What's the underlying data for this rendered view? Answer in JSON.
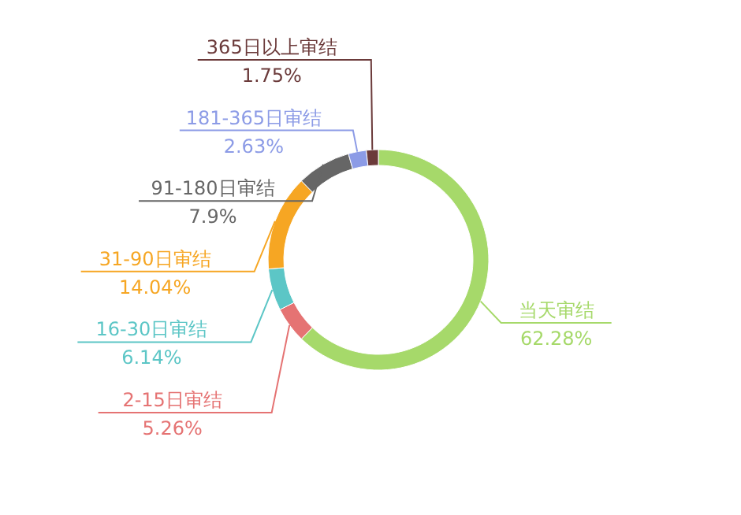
{
  "chart_data": {
    "type": "donut",
    "categories": [
      "当天审结",
      "2-15日审结",
      "16-30日审结",
      "31-90日审结",
      "91-180日审结",
      "181-365日审结",
      "365日以上审结"
    ],
    "values": [
      62.28,
      5.26,
      6.14,
      14.04,
      7.9,
      2.63,
      1.75
    ],
    "value_labels": [
      "62.28%",
      "5.26%",
      "6.14%",
      "14.04%",
      "7.9%",
      "2.63%",
      "1.75%"
    ],
    "colors": [
      "#a6d96a",
      "#e57373",
      "#5cc6c6",
      "#f6a623",
      "#666666",
      "#8c9be6",
      "#6b3a3a"
    ]
  }
}
